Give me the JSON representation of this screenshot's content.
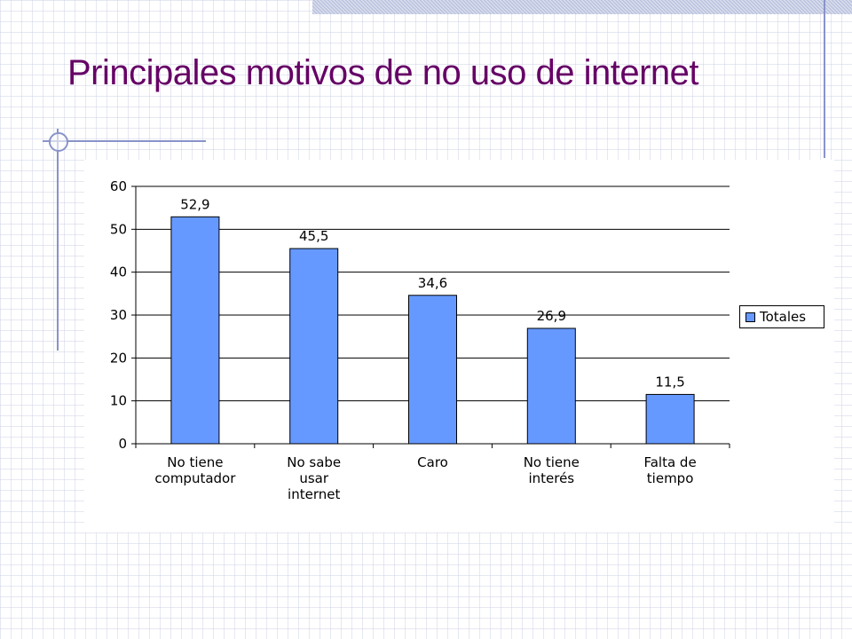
{
  "page": {
    "title": "Principales motivos de no uso de internet"
  },
  "chart_data": {
    "type": "bar",
    "categories": [
      [
        "No tiene",
        "computador"
      ],
      [
        "No sabe",
        "usar",
        "internet"
      ],
      [
        "Caro"
      ],
      [
        "No tiene",
        "interés"
      ],
      [
        "Falta de",
        "tiempo"
      ]
    ],
    "series": [
      {
        "name": "Totales",
        "values": [
          52.9,
          45.5,
          34.6,
          26.9,
          11.5
        ],
        "labels": [
          "52,9",
          "45,5",
          "34,6",
          "26,9",
          "11,5"
        ]
      }
    ],
    "ylim": [
      0,
      60
    ],
    "yticks": [
      0,
      10,
      20,
      30,
      40,
      50,
      60
    ],
    "grid": true,
    "legend": "right",
    "colors": {
      "bar": "#6699FF",
      "bar_border": "#000000",
      "title": "#660066",
      "grid": "#000000"
    }
  }
}
